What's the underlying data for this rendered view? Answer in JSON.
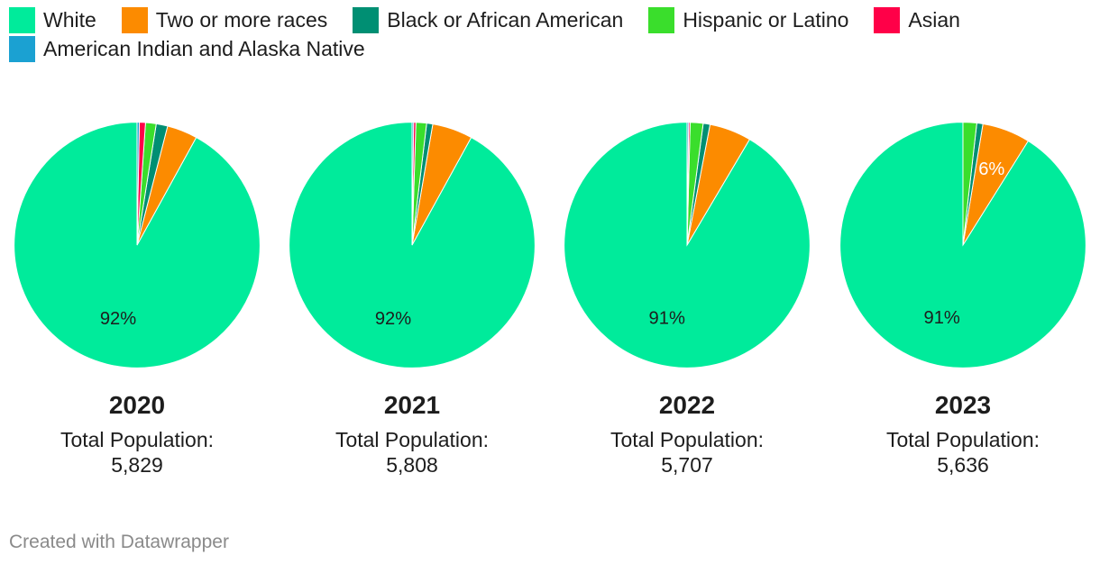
{
  "legend": [
    {
      "label": "White",
      "color": "#00eb9b"
    },
    {
      "label": "Two or more races",
      "color": "#fc8b00"
    },
    {
      "label": "Black or African American",
      "color": "#008f73"
    },
    {
      "label": "Hispanic or Latino",
      "color": "#3ade2c"
    },
    {
      "label": "Asian",
      "color": "#ff0048"
    },
    {
      "label": "American Indian and Alaska Native",
      "color": "#1ba1d2"
    }
  ],
  "chart_data": [
    {
      "type": "pie",
      "title": "2020",
      "subtitle_label": "Total Population:",
      "subtitle_value": "5,829",
      "slices": [
        {
          "name": "White",
          "value": 92,
          "label": "92%"
        },
        {
          "name": "Two or more races",
          "value": 4
        },
        {
          "name": "Black or African American",
          "value": 1.5
        },
        {
          "name": "Hispanic or Latino",
          "value": 1.4
        },
        {
          "name": "Asian",
          "value": 0.8
        },
        {
          "name": "American Indian and Alaska Native",
          "value": 0.3
        }
      ]
    },
    {
      "type": "pie",
      "title": "2021",
      "subtitle_label": "Total Population:",
      "subtitle_value": "5,808",
      "slices": [
        {
          "name": "White",
          "value": 92,
          "label": "92%"
        },
        {
          "name": "Two or more races",
          "value": 5.3
        },
        {
          "name": "Black or African American",
          "value": 0.8
        },
        {
          "name": "Hispanic or Latino",
          "value": 1.4
        },
        {
          "name": "Asian",
          "value": 0.3
        },
        {
          "name": "American Indian and Alaska Native",
          "value": 0.2
        }
      ]
    },
    {
      "type": "pie",
      "title": "2022",
      "subtitle_label": "Total Population:",
      "subtitle_value": "5,707",
      "slices": [
        {
          "name": "White",
          "value": 91.5,
          "label": "91%"
        },
        {
          "name": "Two or more races",
          "value": 5.5
        },
        {
          "name": "Black or African American",
          "value": 0.9
        },
        {
          "name": "Hispanic or Latino",
          "value": 1.7
        },
        {
          "name": "Asian",
          "value": 0.2
        },
        {
          "name": "American Indian and Alaska Native",
          "value": 0.2
        }
      ]
    },
    {
      "type": "pie",
      "title": "2023",
      "subtitle_label": "Total Population:",
      "subtitle_value": "5,636",
      "slices": [
        {
          "name": "White",
          "value": 91.1,
          "label": "91%"
        },
        {
          "name": "Two or more races",
          "value": 6.3,
          "label": "6%"
        },
        {
          "name": "Black or African American",
          "value": 0.8
        },
        {
          "name": "Hispanic or Latino",
          "value": 1.8
        }
      ]
    }
  ],
  "footer": {
    "credit": "Created with Datawrapper"
  }
}
